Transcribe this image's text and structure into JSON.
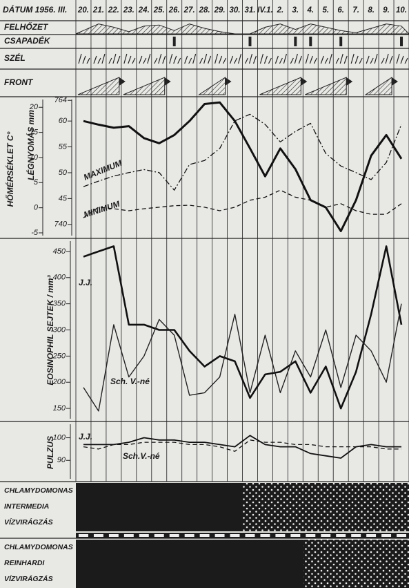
{
  "header": {
    "label": "DÁTUM 1956. III."
  },
  "rows": [
    "FELHŐZET",
    "CSAPADÉK",
    "SZÉL",
    "FRONT"
  ],
  "chart_data": [
    {
      "type": "line",
      "categories": [
        "20.",
        "21.",
        "22.",
        "23.",
        "24.",
        "25.",
        "26.",
        "27.",
        "28.",
        "29.",
        "30.",
        "31.",
        "IV.1.",
        "2.",
        "3.",
        "4.",
        "5.",
        "6.",
        "7.",
        "8.",
        "9.",
        "10."
      ],
      "ylabel": "HŐMÉRSÉKLET C°",
      "y2label": "LÉGNYOMÁS mm",
      "ylim": [
        -6.1,
        22.1
      ],
      "yticks": [
        20,
        15,
        10,
        5,
        0,
        -5
      ],
      "y2lim": [
        737.3,
        764.7
      ],
      "y2ticks": [
        764,
        {
          "value": 760,
          "label": "60"
        },
        {
          "value": 755,
          "label": "55"
        },
        {
          "value": 750,
          "label": "50"
        },
        {
          "value": 745,
          "label": "45"
        },
        740
      ],
      "series": [
        {
          "axis": "y2",
          "color": "#111",
          "style": "solid",
          "width": 3,
          "values": [
            760,
            759.3,
            758.7,
            759,
            756.7,
            755.7,
            757.3,
            760,
            763.3,
            763.6,
            760,
            754.7,
            749.3,
            754.7,
            750.7,
            744.7,
            743.3,
            738.7,
            744.7,
            753.3,
            757.3,
            752.7
          ]
        },
        {
          "name": "MAXIMUM",
          "color": "#111",
          "style": "dashdot",
          "width": 1.3,
          "values": [
            4.2,
            5.3,
            6.3,
            7,
            7.6,
            7,
            3.5,
            8.6,
            9.4,
            11.8,
            17.3,
            18.6,
            16.6,
            13.1,
            15.2,
            16.8,
            10.8,
            8.3,
            7,
            5.6,
            9,
            16.6
          ]
        },
        {
          "name": "MINIMUM",
          "color": "#111",
          "style": "dashed",
          "width": 1.3,
          "values": [
            -2,
            0.1,
            -0.2,
            -0.6,
            -0.2,
            0.1,
            0.4,
            0.5,
            0.1,
            -0.6,
            0.1,
            1.5,
            2.1,
            3.5,
            2.1,
            1.5,
            0.1,
            0.8,
            -0.6,
            -1.3,
            -1.3,
            0.8
          ]
        }
      ]
    },
    {
      "type": "line",
      "ylabel": "EOSINOPHIL SEJTEK / mm³",
      "ylim": [
        125,
        475
      ],
      "yticks": [
        450,
        400,
        350,
        300,
        250,
        200,
        150
      ],
      "series": [
        {
          "name": "J.J.",
          "color": "#111",
          "style": "solid",
          "width": 2.6,
          "values": [
            440,
            450,
            460,
            310,
            310,
            300,
            300,
            260,
            230,
            250,
            240,
            170,
            215,
            220,
            240,
            180,
            230,
            150,
            220,
            330,
            460,
            310
          ]
        },
        {
          "name": "Sch. V.-né",
          "color": "#222",
          "style": "solid",
          "width": 1.4,
          "values": [
            190,
            145,
            310,
            210,
            250,
            320,
            290,
            175,
            180,
            210,
            330,
            180,
            290,
            180,
            260,
            210,
            300,
            190,
            290,
            260,
            200,
            350
          ]
        }
      ]
    },
    {
      "type": "line",
      "ylabel": "PULZUS",
      "ylim": [
        80.6,
        107.2
      ],
      "yticks": [
        100,
        90
      ],
      "series": [
        {
          "name": "J.J.",
          "color": "#111",
          "style": "solid",
          "width": 1.8,
          "values": [
            97,
            97,
            97,
            98,
            100,
            99,
            99,
            98,
            98,
            97,
            96,
            101,
            97,
            96,
            96,
            93,
            92,
            91,
            96,
            97,
            96,
            96
          ]
        },
        {
          "name": "Sch.V.-né",
          "color": "#111",
          "style": "dashed",
          "width": 1.3,
          "values": [
            96,
            95,
            97,
            97,
            98,
            98,
            98,
            97,
            97,
            96,
            94,
            99,
            98,
            98,
            97,
            97,
            96,
            96,
            96,
            96,
            95,
            95
          ]
        }
      ]
    }
  ],
  "bands": [
    [
      "CHLAMYDOMONAS",
      "INTERMEDIA",
      "VÍZVIRÁGZÁS"
    ],
    [
      "CHLAMYDOMONAS",
      "REINHARDI",
      "VÍZVIRÁGZÁS"
    ]
  ]
}
